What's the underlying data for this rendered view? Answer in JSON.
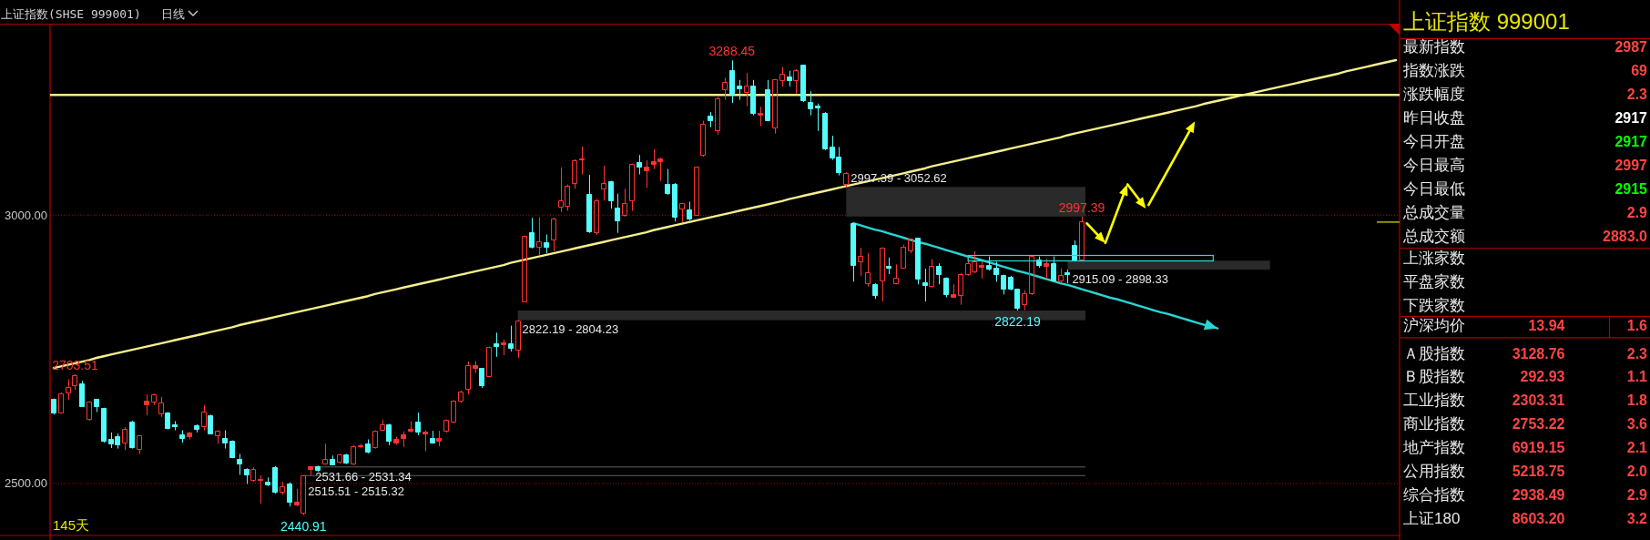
{
  "chart_data": [
    {
      "type": "candlestick",
      "title": "上证指数(SHSE 999001)",
      "subtitle": "日线",
      "categories": [
        null,
        null,
        null,
        null,
        null,
        null,
        null,
        null,
        null,
        null,
        null,
        null,
        null,
        null,
        null,
        null,
        null,
        null,
        null,
        null,
        null,
        null,
        null,
        null,
        null,
        null,
        null,
        null,
        null,
        null,
        null,
        null,
        null,
        null,
        null,
        null,
        null,
        null,
        null,
        null,
        null,
        null,
        null,
        null,
        null,
        null,
        null,
        null,
        null,
        null,
        null,
        null,
        null,
        null,
        null,
        null,
        null,
        null,
        null,
        null,
        null,
        null,
        null,
        null,
        null,
        null,
        null,
        null,
        null,
        null,
        null,
        null,
        null,
        null,
        null,
        null,
        null,
        null,
        null,
        null,
        null,
        null,
        null,
        null,
        null,
        null,
        null,
        null,
        null,
        null,
        null,
        null,
        null,
        null,
        null,
        null,
        null,
        null,
        null,
        null,
        null,
        null,
        null,
        null,
        null,
        null,
        null,
        null,
        null,
        null,
        null,
        null,
        null,
        null,
        null,
        null,
        null,
        null,
        null,
        null,
        null,
        null,
        null,
        null,
        null,
        null,
        null,
        null,
        null,
        null,
        null,
        null,
        null,
        null,
        null,
        null,
        null,
        null,
        null,
        null,
        null,
        null,
        null,
        null,
        null,
        null,
        null,
        null,
        null,
        null,
        null,
        null,
        null,
        null,
        null,
        null,
        null,
        null,
        null,
        null,
        null,
        null,
        null,
        null,
        null,
        null,
        null,
        null,
        null,
        null,
        null,
        null,
        null,
        null,
        null,
        null,
        null,
        null,
        null,
        null,
        null,
        null,
        null,
        null,
        null,
        null,
        null,
        null,
        null
      ],
      "ohlc": [
        [
          2656,
          2658,
          2628,
          2632
        ],
        [
          2632,
          2669,
          2630,
          2667
        ],
        [
          2669,
          2694,
          2656,
          2679
        ],
        [
          2682,
          2703.51,
          2674,
          2701
        ],
        [
          2685,
          2691,
          2643,
          2644
        ],
        [
          2619,
          2653,
          2617,
          2651
        ],
        [
          2656,
          2657,
          2633,
          2644
        ],
        [
          2640,
          2641,
          2576,
          2578
        ],
        [
          2582,
          2595,
          2566,
          2574
        ],
        [
          2587,
          2593,
          2565,
          2572
        ],
        [
          2576,
          2605,
          2562,
          2601
        ],
        [
          2614,
          2617,
          2565,
          2566
        ],
        [
          2563,
          2590,
          2555,
          2589
        ],
        [
          2646,
          2666,
          2627,
          2654
        ],
        [
          2651,
          2667,
          2646,
          2666
        ],
        [
          2630,
          2661,
          2624,
          2650
        ],
        [
          2632,
          2633,
          2601,
          2603
        ],
        [
          2610,
          2616,
          2599,
          2605
        ],
        [
          2590,
          2599,
          2576,
          2583
        ],
        [
          2587,
          2596,
          2582,
          2594
        ],
        [
          2608,
          2610,
          2595,
          2600
        ],
        [
          2606,
          2646,
          2599,
          2633
        ],
        [
          2627,
          2628,
          2592,
          2593
        ],
        [
          2589,
          2599,
          2574,
          2598
        ],
        [
          2584,
          2599,
          2565,
          2576
        ],
        [
          2579,
          2580,
          2547,
          2548
        ],
        [
          2544,
          2555,
          2516,
          2536
        ],
        [
          2526,
          2528,
          2499,
          2516
        ],
        [
          2505,
          2530,
          2503,
          2526
        ],
        [
          2505,
          2515,
          2462,
          2508
        ],
        [
          2502,
          2511,
          2495,
          2497
        ],
        [
          2530,
          2532,
          2481,
          2483
        ],
        [
          2484,
          2503,
          2479,
          2494
        ],
        [
          2499,
          2502,
          2457,
          2465
        ],
        [
          2460,
          2490,
          2457,
          2465
        ],
        [
          2445,
          2515.32,
          2440.91,
          2515
        ],
        [
          2526,
          2531.34,
          2515.51,
          2531
        ],
        [
          2531,
          2533,
          2522,
          2524
        ],
        [
          2537,
          2574,
          2535,
          2544
        ],
        [
          2544,
          2552,
          2534,
          2535
        ],
        [
          2540,
          2555,
          2537,
          2553
        ],
        [
          2553,
          2555,
          2536,
          2538
        ],
        [
          2537,
          2571,
          2534,
          2569
        ],
        [
          2568,
          2574,
          2566,
          2571
        ],
        [
          2574,
          2582,
          2556,
          2558
        ],
        [
          2566,
          2599,
          2565,
          2597
        ],
        [
          2599,
          2619,
          2598,
          2610
        ],
        [
          2610,
          2611,
          2571,
          2579
        ],
        [
          2576,
          2587,
          2572,
          2582
        ],
        [
          2584,
          2597,
          2568,
          2590
        ],
        [
          2597,
          2616,
          2595,
          2601
        ],
        [
          2614,
          2632,
          2590,
          2595
        ],
        [
          2592,
          2599,
          2560,
          2595
        ],
        [
          2584,
          2598,
          2574,
          2576
        ],
        [
          2579,
          2598,
          2569,
          2584
        ],
        [
          2598,
          2619,
          2595,
          2617
        ],
        [
          2614,
          2655,
          2612,
          2653
        ],
        [
          2654,
          2673,
          2650,
          2671
        ],
        [
          2675,
          2727,
          2666,
          2720
        ],
        [
          2715,
          2728,
          2706,
          2720
        ],
        [
          2714,
          2715,
          2678,
          2683
        ],
        [
          2700,
          2755,
          2698,
          2754
        ],
        [
          2760,
          2781,
          2736,
          2755
        ],
        [
          2759,
          2768,
          2739,
          2762
        ],
        [
          2760,
          2794,
          2746,
          2752
        ],
        [
          2749,
          2804.23,
          2734,
          2802
        ],
        [
          2839,
          2962,
          2838,
          2961
        ],
        [
          2967,
          2995,
          2938,
          2940
        ],
        [
          2940,
          2996,
          2926,
          2951
        ],
        [
          2948,
          2964,
          2929,
          2940
        ],
        [
          2953,
          2995,
          2933,
          2993
        ],
        [
          3015,
          3089,
          3006,
          3027
        ],
        [
          3017,
          3057,
          3008,
          3054
        ],
        [
          3059,
          3104,
          3049,
          3102
        ],
        [
          3103,
          3128,
          3076,
          3105
        ],
        [
          3038,
          3075,
          2967,
          2969
        ],
        [
          2967,
          3030,
          2963,
          3027
        ],
        [
          3049,
          3092,
          3027,
          3059
        ],
        [
          3062,
          3064,
          3012,
          3027
        ],
        [
          3014,
          3040,
          2967,
          2990
        ],
        [
          2999,
          3049,
          2997,
          3021
        ],
        [
          3027,
          3096,
          3008,
          3094
        ],
        [
          3098,
          3112,
          3076,
          3089
        ],
        [
          3083,
          3102,
          3051,
          3089
        ],
        [
          3094,
          3123,
          3086,
          3100
        ],
        [
          3100,
          3107,
          3064,
          3105
        ],
        [
          3057,
          3086,
          3038,
          3041
        ],
        [
          3057,
          3060,
          2988,
          2996
        ],
        [
          3012,
          3023,
          2987,
          3021
        ],
        [
          3009,
          3025,
          2990,
          2993
        ],
        [
          3000,
          3091,
          2999,
          3089
        ],
        [
          3111,
          3176,
          3109,
          3170
        ],
        [
          3184,
          3192,
          3164,
          3176
        ],
        [
          3157,
          3220,
          3150,
          3216
        ],
        [
          3233,
          3256,
          3215,
          3247
        ],
        [
          3269,
          3288.45,
          3209,
          3226
        ],
        [
          3240,
          3252,
          3215,
          3235
        ],
        [
          3229,
          3265,
          3203,
          3241
        ],
        [
          3240,
          3252,
          3186,
          3189
        ],
        [
          3186,
          3202,
          3166,
          3189
        ],
        [
          3233,
          3252,
          3175,
          3176
        ],
        [
          3163,
          3254,
          3152,
          3252
        ],
        [
          3250,
          3276,
          3240,
          3263
        ],
        [
          3258,
          3269,
          3240,
          3250
        ],
        [
          3250,
          3272,
          3226,
          3269
        ],
        [
          3279,
          3280,
          3211,
          3213
        ],
        [
          3210,
          3231,
          3186,
          3199
        ],
        [
          3203,
          3208,
          3157,
          3200
        ],
        [
          3190,
          3192,
          3121,
          3123
        ],
        [
          3127,
          3148,
          3103,
          3106
        ],
        [
          3109,
          3127,
          3074,
          3080
        ],
        [
          3057,
          3080,
          3052.62,
          3077
        ],
        [
          2984,
          2985,
          2876,
          2907
        ],
        [
          2913,
          2939,
          2887,
          2924
        ],
        [
          2873,
          2929,
          2867,
          2892
        ],
        [
          2871,
          2873,
          2844,
          2850
        ],
        [
          2878,
          2940,
          2839,
          2939
        ],
        [
          2905,
          2921,
          2890,
          2901
        ],
        [
          2873,
          2908,
          2871,
          2882
        ],
        [
          2901,
          2945,
          2900,
          2940
        ],
        [
          2933,
          2957,
          2929,
          2955
        ],
        [
          2957,
          2958,
          2871,
          2881
        ],
        [
          2874,
          2900,
          2839,
          2869
        ],
        [
          2867,
          2918,
          2865,
          2905
        ],
        [
          2905,
          2910,
          2871,
          2890
        ],
        [
          2882,
          2884,
          2847,
          2852
        ],
        [
          2847,
          2871,
          2846,
          2852
        ],
        [
          2850,
          2892,
          2833,
          2890
        ],
        [
          2890,
          2918,
          2887,
          2910
        ],
        [
          2895,
          2933,
          2892,
          2913
        ],
        [
          2903,
          2916,
          2882,
          2907
        ],
        [
          2907,
          2923,
          2897,
          2899
        ],
        [
          2901,
          2913,
          2876,
          2889
        ],
        [
          2887,
          2889,
          2852,
          2862
        ],
        [
          2884,
          2887,
          2860,
          2862
        ],
        [
          2862,
          2863,
          2822.19,
          2826
        ],
        [
          2833,
          2860,
          2823,
          2854
        ],
        [
          2853,
          2924,
          2851,
          2923
        ],
        [
          2917,
          2923,
          2902,
          2907
        ],
        [
          2904,
          2918,
          2883,
          2910
        ],
        [
          2910,
          2923,
          2876,
          2878
        ],
        [
          2878,
          2901,
          2874,
          2887
        ],
        [
          2892,
          2898.33,
          2873,
          2889
        ],
        [
          2944,
          2953,
          2916,
          2917
        ],
        [
          2917,
          2997.39,
          2915.09,
          2987
        ],
        null,
        null,
        null,
        null,
        null,
        null,
        null,
        null,
        null,
        null,
        null,
        null,
        null,
        null,
        null,
        null,
        null,
        null,
        null,
        null,
        null,
        null,
        null,
        null,
        null,
        null,
        null,
        null,
        null,
        null,
        null,
        null,
        null,
        null,
        null,
        null,
        null,
        null,
        null,
        null,
        null,
        null,
        null,
        null
      ],
      "colors": [
        "#54fcfc",
        "#ff3232",
        "#ff3232",
        "#ff3232",
        "#54fcfc",
        "#ff3232",
        "#54fcfc",
        "#54fcfc",
        "#54fcfc",
        "#54fcfc",
        "#ff3232",
        "#54fcfc",
        "#ff3232",
        "#ff3232",
        "#ff3232",
        "#ff3232",
        "#54fcfc",
        "#54fcfc",
        "#54fcfc",
        "#ff3232",
        "#54fcfc",
        "#ff3232",
        "#54fcfc",
        "#ff3232",
        "#54fcfc",
        "#54fcfc",
        "#54fcfc",
        "#54fcfc",
        "#ff3232",
        "#ff3232",
        "#54fcfc",
        "#54fcfc",
        "#ff3232",
        "#54fcfc",
        "#ff3232",
        "#ff3232",
        "#ff3232",
        "#54fcfc",
        "#ff3232",
        "#54fcfc",
        "#ff3232",
        "#54fcfc",
        "#ff3232",
        "#ff3232",
        "#54fcfc",
        "#ff3232",
        "#ff3232",
        "#54fcfc",
        "#ff3232",
        "#ff3232",
        "#ff3232",
        "#54fcfc",
        "#ff3232",
        "#54fcfc",
        "#ff3232",
        "#ff3232",
        "#ff3232",
        "#ff3232",
        "#ff3232",
        "#ff3232",
        "#54fcfc",
        "#ff3232",
        "#54fcfc",
        "#ff3232",
        "#54fcfc",
        "#ff3232",
        "#ff3232",
        "#54fcfc",
        "#ff3232",
        "#54fcfc",
        "#ff3232",
        "#ff3232",
        "#ff3232",
        "#ff3232",
        "#ff3232",
        "#54fcfc",
        "#ff3232",
        "#ff3232",
        "#54fcfc",
        "#54fcfc",
        "#ff3232",
        "#ff3232",
        "#54fcfc",
        "#ff3232",
        "#ff3232",
        "#ff3232",
        "#54fcfc",
        "#54fcfc",
        "#ff3232",
        "#54fcfc",
        "#ff3232",
        "#ff3232",
        "#54fcfc",
        "#ff3232",
        "#ff3232",
        "#54fcfc",
        "#54fcfc",
        "#ff3232",
        "#54fcfc",
        "#ff3232",
        "#54fcfc",
        "#ff3232",
        "#ff3232",
        "#54fcfc",
        "#ff3232",
        "#54fcfc",
        "#54fcfc",
        "#54fcfc",
        "#54fcfc",
        "#54fcfc",
        "#54fcfc",
        "#ff3232",
        "#54fcfc",
        "#ff3232",
        "#ff3232",
        "#54fcfc",
        "#ff3232",
        "#54fcfc",
        "#ff3232",
        "#ff3232",
        "#ff3232",
        "#54fcfc",
        "#54fcfc",
        "#ff3232",
        "#54fcfc",
        "#54fcfc",
        "#ff3232",
        "#ff3232",
        "#ff3232",
        "#ff3232",
        "#ff3232",
        "#54fcfc",
        "#54fcfc",
        "#54fcfc",
        "#54fcfc",
        "#54fcfc",
        "#ff3232",
        "#ff3232",
        "#54fcfc",
        "#ff3232",
        "#54fcfc",
        "#ff3232",
        "#54fcfc",
        "#54fcfc",
        "#ff3232",
        null,
        null,
        null,
        null,
        null,
        null,
        null,
        null,
        null,
        null,
        null,
        null,
        null,
        null,
        null,
        null,
        null,
        null,
        null,
        null,
        null,
        null,
        null,
        null,
        null,
        null,
        null,
        null,
        null,
        null,
        null,
        null,
        null,
        null,
        null,
        null,
        null,
        null,
        null,
        null,
        null,
        null,
        null,
        null
      ],
      "ylim": [
        2403,
        3356
      ],
      "yticks": [
        {
          "value": 2500,
          "label": "2500.00"
        },
        {
          "value": 3000,
          "label": "3000.00"
        }
      ],
      "grid": "y",
      "tick_labels": "y",
      "ref_lines": [
        {
          "axis": "y",
          "value": 3224,
          "color": "#f5f08c"
        }
      ],
      "bands": [
        {
          "axis": "y",
          "from": 2531.34,
          "to": 2531.66,
          "label": "2531.66 - 2531.34",
          "color": "#505050"
        },
        {
          "axis": "y",
          "from": 2515.32,
          "to": 2515.51,
          "label": "2515.51 - 2515.32",
          "color": "#505050"
        },
        {
          "axis": "y",
          "from": 2804.23,
          "to": 2822.19,
          "label": "2822.19 - 2804.23",
          "color": "#2a2a2a"
        },
        {
          "axis": "y",
          "from": 2997.39,
          "to": 3052.62,
          "label": "2997.39 - 3052.62",
          "color": "#2a2a2a"
        },
        {
          "axis": "y",
          "from": 2898.33,
          "to": 2915.09,
          "label": "2915.09 - 2898.33",
          "color": "#2a2a2a"
        }
      ],
      "series": [
        {
          "type": "line",
          "color": "#f5f08c",
          "values": [
            2715,
            2718,
            2721,
            2724,
            2727,
            2730,
            2734,
            2737,
            2740,
            2743,
            2746,
            2749,
            2752,
            2755,
            2758,
            2761,
            2764,
            2767,
            2770,
            2773,
            2776,
            2779,
            2782,
            2785,
            2788,
            2791,
            2795,
            2798,
            2801,
            2804,
            2807,
            2810,
            2813,
            2816,
            2819,
            2822,
            2825,
            2828,
            2831,
            2834,
            2837,
            2840,
            2843,
            2846,
            2849,
            2853,
            2856,
            2859,
            2862,
            2865,
            2868,
            2871,
            2874,
            2877,
            2880,
            2883,
            2886,
            2889,
            2892,
            2895,
            2898,
            2901,
            2904,
            2907,
            2911,
            2914,
            2917,
            2920,
            2923,
            2926,
            2929,
            2932,
            2935,
            2938,
            2941,
            2944,
            2947,
            2950,
            2953,
            2956,
            2959,
            2962,
            2965,
            2968,
            2972,
            2975,
            2978,
            2981,
            2984,
            2987,
            2990,
            2993,
            2996,
            2999,
            3002,
            3005,
            3008,
            3011,
            3014,
            3017,
            3020,
            3023,
            3026,
            3030,
            3033,
            3036,
            3039,
            3042,
            3045,
            3048,
            3051,
            3054,
            3057,
            3060,
            3063,
            3066,
            3069,
            3072,
            3075,
            3078,
            3081,
            3084,
            3087,
            3091,
            3094,
            3097,
            3100,
            3103,
            3106,
            3109,
            3112,
            3115,
            3118,
            3121,
            3124,
            3127,
            3130,
            3133,
            3136,
            3139,
            3142,
            3145,
            3149,
            3152,
            3155,
            3158,
            3161,
            3164,
            3167,
            3170,
            3173,
            3176,
            3179,
            3182,
            3185,
            3188,
            3191,
            3194,
            3197,
            3200,
            3203,
            3207,
            3210,
            3213,
            3216,
            3219,
            3222,
            3225,
            3228,
            3231,
            3234,
            3237,
            3240,
            3243,
            3246,
            3249,
            3252,
            3255,
            3258,
            3261,
            3264,
            3268,
            3271,
            3274,
            3277,
            3280,
            3283,
            3286,
            3289
          ]
        },
        {
          "type": "line",
          "color": "#2ad4d4",
          "values": [
            null,
            null,
            null,
            null,
            null,
            null,
            null,
            null,
            null,
            null,
            null,
            null,
            null,
            null,
            null,
            null,
            null,
            null,
            null,
            null,
            null,
            null,
            null,
            null,
            null,
            null,
            null,
            null,
            null,
            null,
            null,
            null,
            null,
            null,
            null,
            null,
            null,
            null,
            null,
            null,
            null,
            null,
            null,
            null,
            null,
            null,
            null,
            null,
            null,
            null,
            null,
            null,
            null,
            null,
            null,
            null,
            null,
            null,
            null,
            null,
            null,
            null,
            null,
            null,
            null,
            null,
            null,
            null,
            null,
            null,
            null,
            null,
            null,
            null,
            null,
            null,
            null,
            null,
            null,
            null,
            null,
            null,
            null,
            null,
            null,
            null,
            null,
            null,
            null,
            null,
            null,
            null,
            null,
            null,
            null,
            null,
            null,
            null,
            null,
            null,
            null,
            null,
            null,
            null,
            null,
            null,
            null,
            null,
            null,
            null,
            null,
            null,
            2985,
            2981,
            2977,
            2973,
            2970,
            2966,
            2962,
            2958,
            2954,
            2950,
            2947,
            2943,
            2939,
            2935,
            2931,
            2927,
            2923,
            2920,
            2916,
            2912,
            2908,
            2904,
            2900,
            2896,
            2893,
            2889,
            2885,
            2881,
            2877,
            2873,
            2870,
            2866,
            2862,
            2858,
            2854,
            2850,
            2846,
            2843,
            2839,
            2835,
            2831,
            2827,
            2823,
            2819,
            2816,
            2812,
            2808,
            2804,
            2800,
            2796,
            2793,
            2789,
            null,
            null,
            null,
            null,
            null,
            null,
            null,
            null,
            null,
            null,
            null,
            null,
            null,
            null,
            null,
            null,
            null,
            null,
            null,
            null,
            null,
            null,
            null,
            null,
            null
          ]
        }
      ],
      "annotations": [
        "145天",
        {
          "text": "2703.51",
          "y": 2703.51
        },
        {
          "text": "2440.91",
          "y": 2440.91
        },
        {
          "text": "3288.45",
          "y": 3288.45
        },
        {
          "text": "2822.19",
          "y": 2822.19
        },
        {
          "text": "2997.39",
          "y": 2997.39
        }
      ]
    },
    {
      "type": "other",
      "title": "上证指数 999001",
      "y_categories": [
        "最新指数",
        "指数涨跌",
        "涨跌幅度",
        "昨日收盘",
        "今日开盘",
        "今日最高",
        "今日最低",
        "总成交量",
        "总成交额",
        "上涨家数",
        "平盘家数",
        "下跌家数",
        "沪深均价",
        "Ａ股指数",
        "Ｂ股指数",
        "工业指数",
        "商业指数",
        "地产指数",
        "公用指数",
        "综合指数",
        "上证180"
      ],
      "cell_labels": [
        [
          null,
          "2987"
        ],
        [
          null,
          "69"
        ],
        [
          null,
          "2.3"
        ],
        [
          null,
          "2917"
        ],
        [
          null,
          "2917"
        ],
        [
          null,
          "2997"
        ],
        [
          null,
          "2915"
        ],
        [
          null,
          "2.9"
        ],
        [
          null,
          "2883.0"
        ],
        [
          null,
          null
        ],
        [
          null,
          null
        ],
        [
          null,
          null
        ],
        [
          "13.94",
          "1.6"
        ],
        [
          "3128.76",
          "2.3"
        ],
        [
          "292.93",
          "1.1"
        ],
        [
          "2303.31",
          "1.8"
        ],
        [
          "2753.22",
          "3.6"
        ],
        [
          "6919.15",
          "2.1"
        ],
        [
          "5218.75",
          "2.0"
        ],
        [
          "2938.49",
          "2.9"
        ],
        [
          "8603.20",
          "3.2"
        ]
      ],
      "colors": [
        "#ff4444",
        "#ff4444",
        "#ff4444",
        "#ffffff",
        "#00ff00",
        "#ff4444",
        "#00ff00",
        "#ff4444",
        "#ff4444",
        null,
        null,
        null,
        "#ff4444",
        "#ff4444",
        "#ff4444",
        "#ff4444",
        "#ff4444",
        "#ff4444",
        "#ff4444",
        "#ff4444",
        "#ff4444"
      ]
    }
  ]
}
